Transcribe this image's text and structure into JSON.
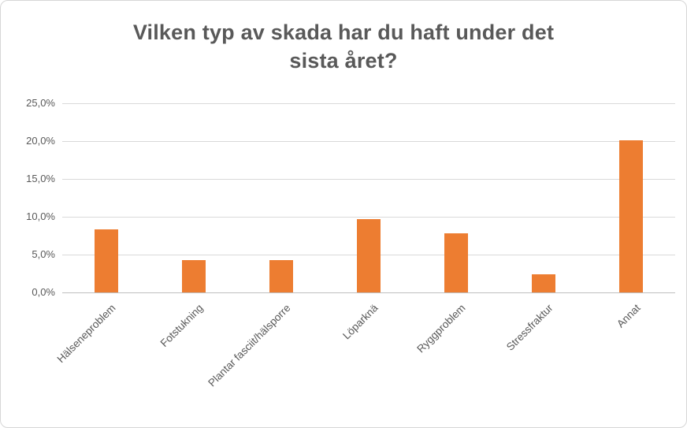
{
  "chart": {
    "title_lines": [
      "Vilken typ av skada har du haft under det",
      "sista året?"
    ]
  },
  "chart_data": {
    "type": "bar",
    "title": "Vilken typ av skada har du haft under det sista året?",
    "categories": [
      "Hälseneproblem",
      "Fotstukning",
      "Plantar fasciit/hälsporre",
      "Löparknä",
      "Ryggproblem",
      "Stressfraktur",
      "Annat"
    ],
    "values": [
      8.3,
      4.3,
      4.3,
      9.7,
      7.8,
      2.4,
      20.1
    ],
    "xlabel": "",
    "ylabel": "",
    "ylim": [
      0,
      25
    ],
    "ytick_step": 5,
    "ytick_labels": [
      "0,0%",
      "5,0%",
      "10,0%",
      "15,0%",
      "20,0%",
      "25,0%"
    ],
    "bar_color": "#ED7D31",
    "grid": true,
    "legend": false
  }
}
